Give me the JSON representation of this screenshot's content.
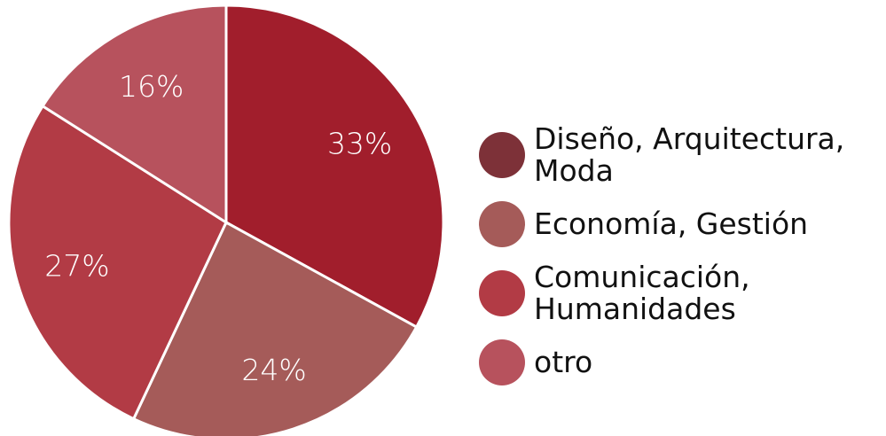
{
  "chart_data": {
    "type": "pie",
    "title": "",
    "slices": [
      {
        "name": "Diseño, Arquitectura,\nModa",
        "value": 33,
        "label": "33%",
        "color": "#a11e2c",
        "legend_color": "#7d3138"
      },
      {
        "name": "Economía, Gestión",
        "value": 24,
        "label": "24%",
        "color": "#a55b59",
        "legend_color": "#a55b59"
      },
      {
        "name": "Comunicación,\nHumanidades",
        "value": 27,
        "label": "27%",
        "color": "#b23b45",
        "legend_color": "#b23b45"
      },
      {
        "name": "otro",
        "value": 16,
        "label": "16%",
        "color": "#b7525d",
        "legend_color": "#b7525d"
      }
    ],
    "start_angle_deg": 0,
    "direction": "clockwise",
    "legend_position": "right"
  }
}
